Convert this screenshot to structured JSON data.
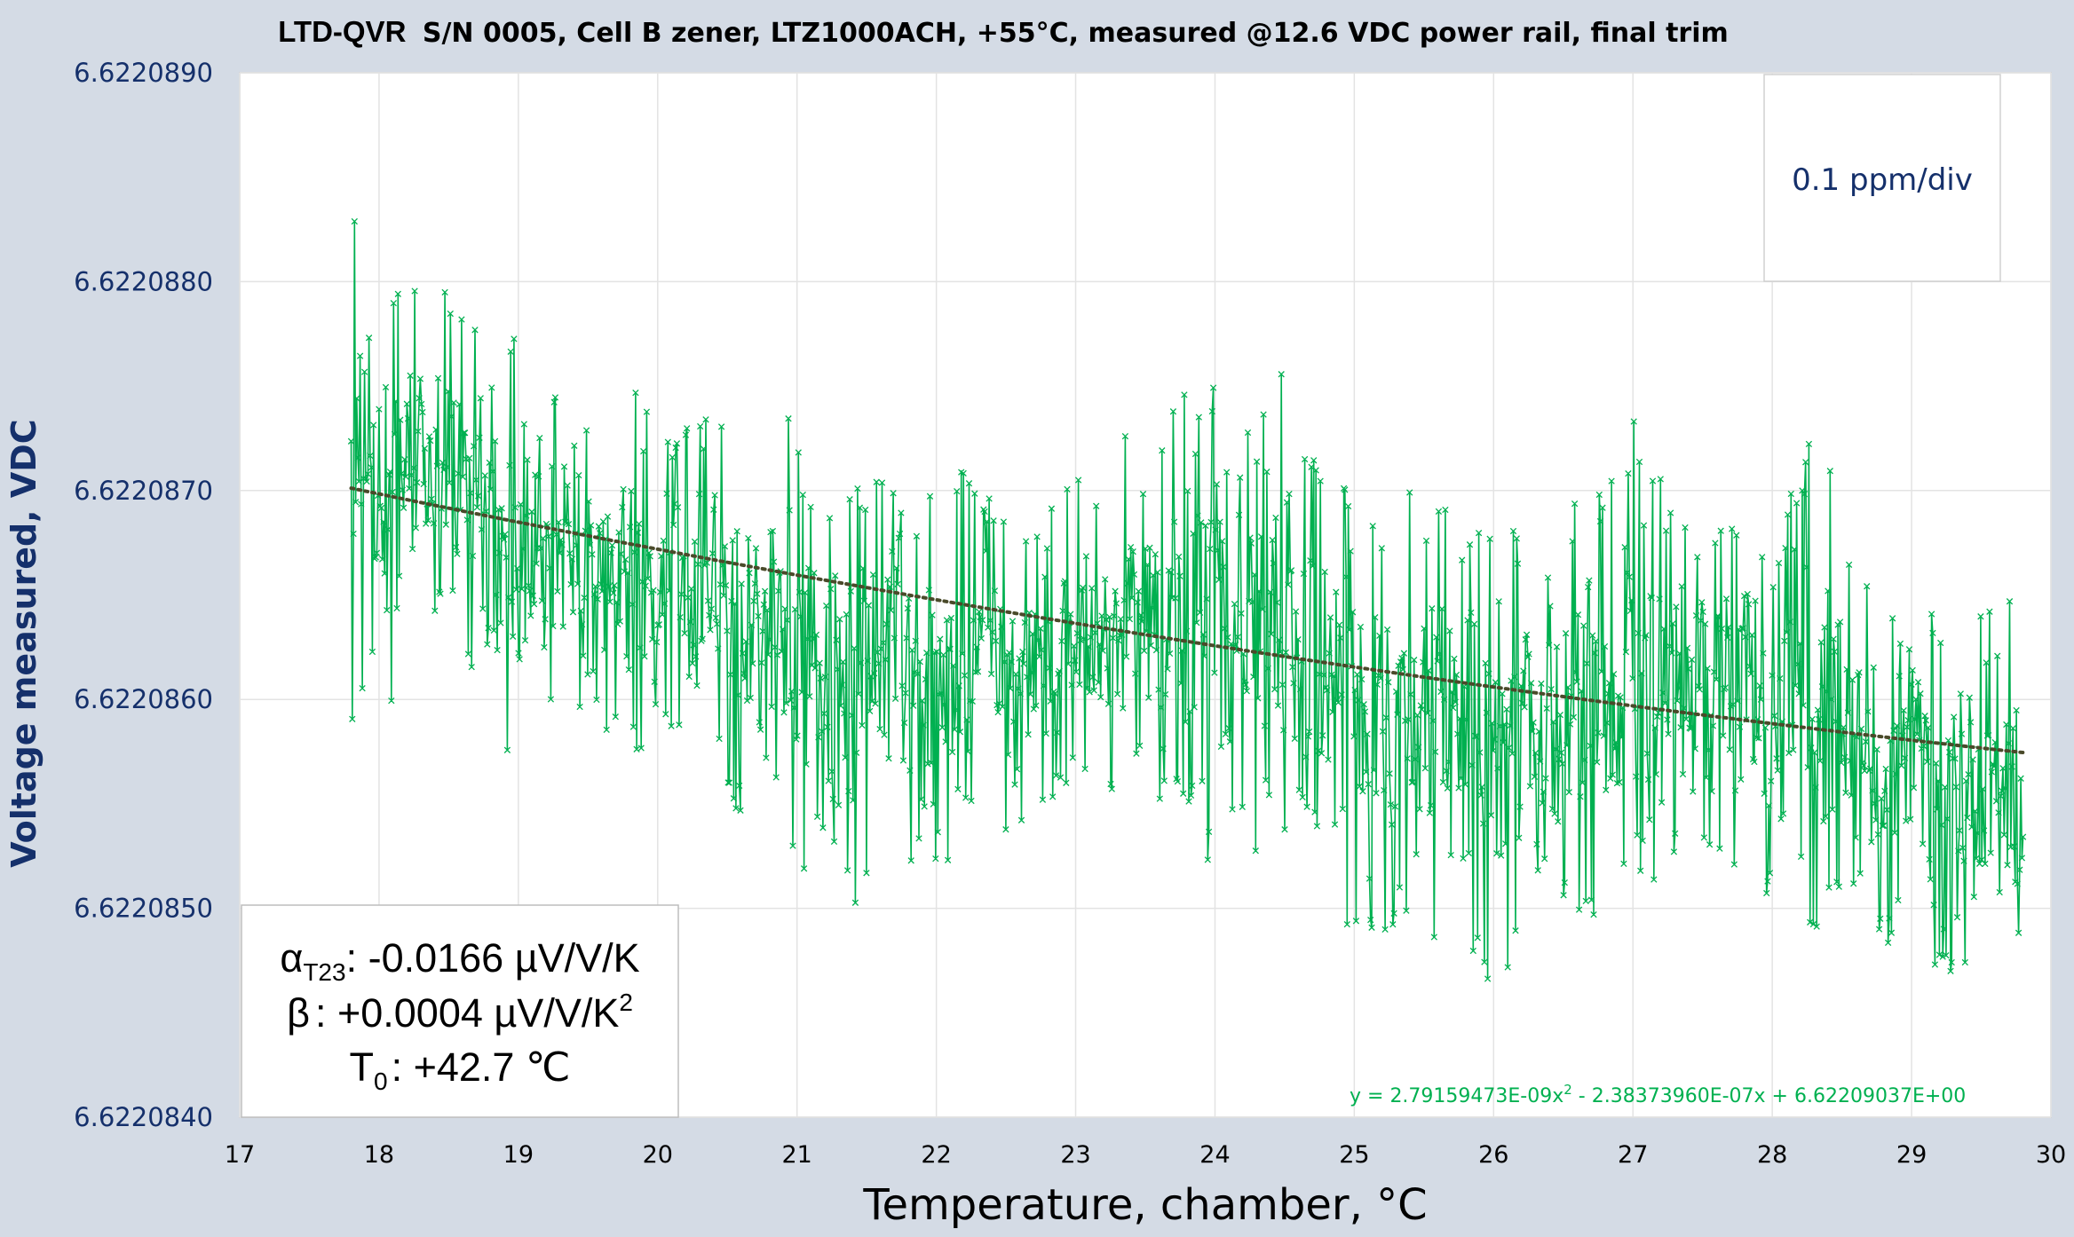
{
  "colors": {
    "series": "#00b050",
    "trend": "#4a4a2a",
    "tick_y": "#15306b",
    "background": "#d4dbe5"
  },
  "chart_data": {
    "type": "scatter",
    "title_brand": "LTD-QVR",
    "title_rest": "S/N 0005, Cell B zener, LTZ1000ACH, +55°C, measured @12.6 VDC power rail, final trim",
    "xlabel": "Temperature, chamber, °C",
    "ylabel": "Voltage measured, VDC",
    "xlim": [
      17,
      30
    ],
    "ylim": [
      6.622084,
      6.622089
    ],
    "x_ticks": [
      "17",
      "18",
      "19",
      "20",
      "21",
      "22",
      "23",
      "24",
      "25",
      "26",
      "27",
      "28",
      "29",
      "30"
    ],
    "y_ticks": [
      "6.6220840",
      "6.6220850",
      "6.6220860",
      "6.6220870",
      "6.6220880",
      "6.6220890"
    ],
    "grid": true,
    "marker": "x",
    "scale_note": "0.1 ppm/div",
    "coefficients": {
      "alpha_symbol": "α",
      "alpha_sub": "T23",
      "alpha_value": ": -0.0166 µV/V/K",
      "beta_symbol": "β",
      "beta_value": ": +0.0004 µV/V/K",
      "beta_sup": "2",
      "t0_symbol": "T",
      "t0_sub": "0",
      "t0_value": ": +42.7 ℃"
    },
    "trendline": {
      "type": "polynomial",
      "order": 2,
      "a2": 2.79159473e-09,
      "a1": -2.3837396e-07,
      "a0": 6.62209037,
      "x_range": [
        17.8,
        29.82
      ],
      "equation_pre": "y = 2.79159473E-09x",
      "equation_sup": "2",
      "equation_post": " - 2.38373960E-07x + 6.62209037E+00"
    },
    "series": [
      {
        "values_description_envelope": true,
        "x": [
          17.8,
          18.0,
          18.2,
          18.4,
          18.6,
          18.8,
          19.0,
          19.2,
          19.4,
          19.6,
          19.8,
          20.0,
          20.2,
          20.4,
          20.6,
          20.8,
          21.0,
          21.2,
          21.4,
          21.6,
          21.8,
          22.0,
          22.2,
          22.4,
          22.6,
          22.8,
          23.0,
          23.2,
          23.4,
          23.6,
          23.8,
          24.0,
          24.2,
          24.4,
          24.6,
          24.8,
          25.0,
          25.2,
          25.4,
          25.6,
          25.8,
          26.0,
          26.2,
          26.4,
          26.6,
          26.8,
          27.0,
          27.2,
          27.4,
          27.6,
          27.8,
          28.0,
          28.2,
          28.4,
          28.6,
          28.8,
          29.0,
          29.2,
          29.4,
          29.6,
          29.8
        ],
        "ymax": [
          6.6220884,
          6.622088,
          6.6220881,
          6.622088,
          6.622088,
          6.6220876,
          6.6220878,
          6.6220876,
          6.6220875,
          6.6220873,
          6.6220876,
          6.6220873,
          6.6220873,
          6.6220874,
          6.6220874,
          6.6220872,
          6.6220876,
          6.6220872,
          6.622087,
          6.6220871,
          6.6220872,
          6.6220871,
          6.6220871,
          6.622087,
          6.6220868,
          6.6220869,
          6.6220872,
          6.622087,
          6.6220875,
          6.6220872,
          6.6220876,
          6.6220876,
          6.6220874,
          6.6220878,
          6.6220874,
          6.622087,
          6.6220872,
          6.6220868,
          6.6220871,
          6.622087,
          6.6220868,
          6.622087,
          6.6220868,
          6.6220866,
          6.622087,
          6.622087,
          6.6220874,
          6.6220872,
          6.6220868,
          6.6220869,
          6.622087,
          6.6220866,
          6.6220872,
          6.6220873,
          6.6220866,
          6.6220865,
          6.6220866,
          6.6220865,
          6.6220864,
          6.6220865,
          6.6220867
        ],
        "ymin": [
          6.6220859,
          6.6220859,
          6.6220861,
          6.6220862,
          6.6220861,
          6.6220859,
          6.6220856,
          6.6220859,
          6.622086,
          6.6220858,
          6.6220858,
          6.6220856,
          6.6220858,
          6.6220857,
          6.6220854,
          6.6220856,
          6.6220851,
          6.6220853,
          6.622085,
          6.622085,
          6.6220851,
          6.6220852,
          6.6220851,
          6.6220853,
          6.6220854,
          6.6220855,
          6.6220856,
          6.6220854,
          6.6220856,
          6.6220854,
          6.6220849,
          6.6220852,
          6.6220853,
          6.622085,
          6.6220855,
          6.6220852,
          6.6220847,
          6.6220849,
          6.6220848,
          6.6220846,
          6.6220849,
          6.6220844,
          6.6220848,
          6.6220849,
          6.622085,
          6.6220848,
          6.6220852,
          6.622085,
          6.6220853,
          6.6220851,
          6.6220852,
          6.622085,
          6.6220847,
          6.622085,
          6.6220851,
          6.6220848,
          6.622085,
          6.6220846,
          6.6220847,
          6.6220843,
          6.6220844
        ]
      }
    ]
  }
}
